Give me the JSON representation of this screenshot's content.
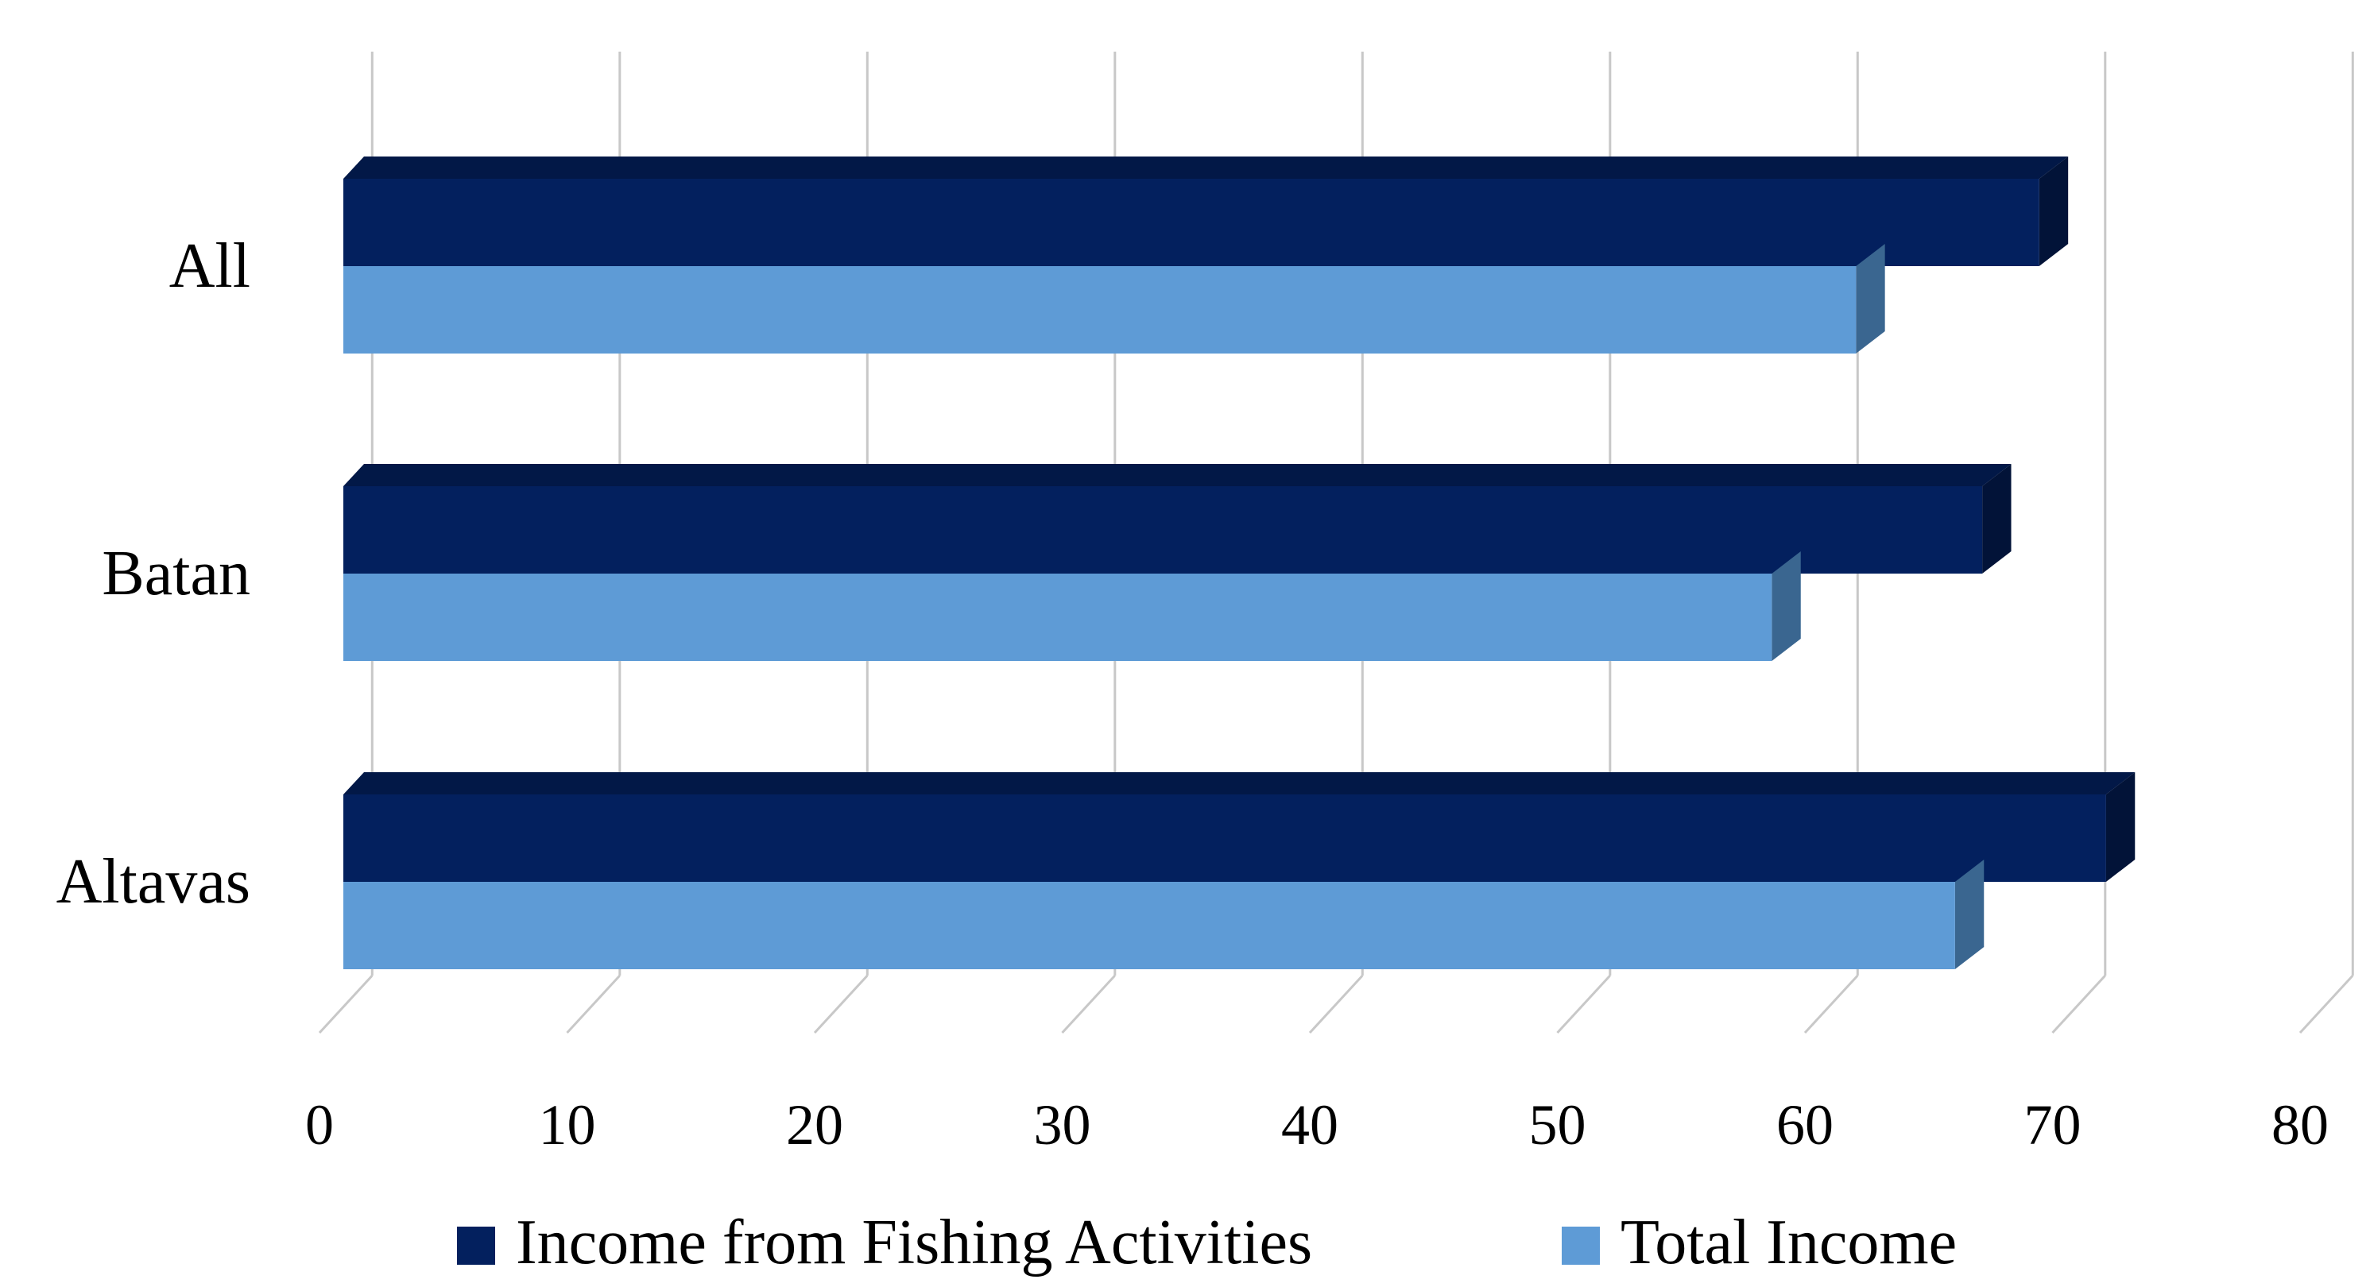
{
  "chart_data": {
    "type": "bar",
    "orientation": "horizontal",
    "three_d": true,
    "categories": [
      "All",
      "Batan",
      "Altavas"
    ],
    "series": [
      {
        "name": "Income from Fishing Activities",
        "values": [
          68.5,
          66.2,
          71.2
        ],
        "color": "#03205e"
      },
      {
        "name": "Total Income",
        "values": [
          61.1,
          57.7,
          65.1
        ],
        "color": "#5e9bd6"
      }
    ],
    "xlim": [
      0,
      80
    ],
    "x_ticks": [
      "0",
      "10",
      "20",
      "30",
      "40",
      "50",
      "60",
      "70",
      "80"
    ],
    "grid": true,
    "legend": "bottom",
    "title": "",
    "xlabel": "",
    "ylabel": ""
  }
}
